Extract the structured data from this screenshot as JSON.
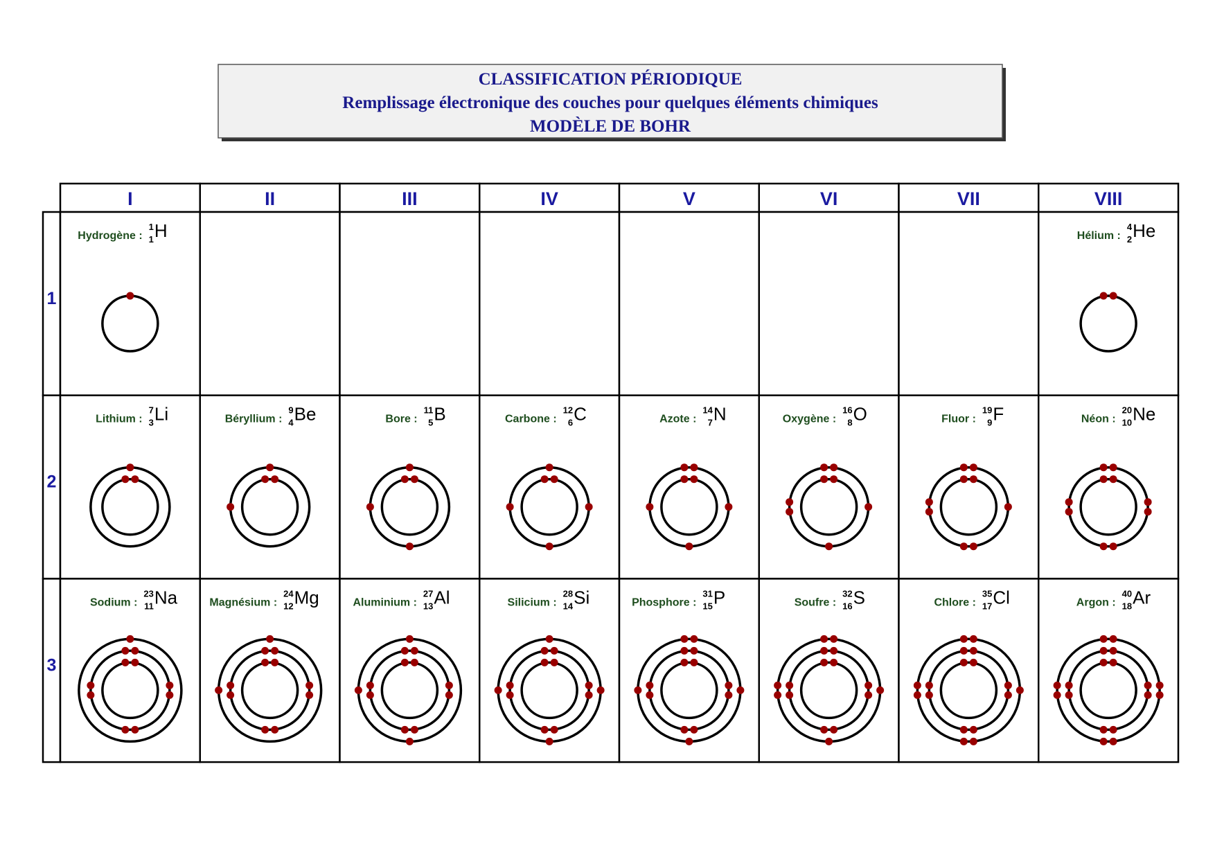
{
  "header": {
    "lines": [
      "CLASSIFICATION PÉRIODIQUE",
      "Remplissage électronique des couches pour quelques éléments chimiques",
      "MODÈLE DE BOHR"
    ]
  },
  "table": {
    "columns": [
      "I",
      "II",
      "III",
      "IV",
      "V",
      "VI",
      "VII",
      "VIII"
    ],
    "rows": [
      {
        "label": "1",
        "cells": [
          {
            "name": "Hydrogène :",
            "mass": 1,
            "z": 1,
            "symbol": "H",
            "shells": [
              1
            ]
          },
          null,
          null,
          null,
          null,
          null,
          null,
          {
            "name": "Hélium :",
            "mass": 4,
            "z": 2,
            "symbol": "He",
            "shells": [
              2
            ]
          }
        ]
      },
      {
        "label": "2",
        "cells": [
          {
            "name": "Lithium :",
            "mass": 7,
            "z": 3,
            "symbol": "Li",
            "shells": [
              2,
              1
            ]
          },
          {
            "name": "Béryllium :",
            "mass": 9,
            "z": 4,
            "symbol": "Be",
            "shells": [
              2,
              2
            ]
          },
          {
            "name": "Bore :",
            "mass": 11,
            "z": 5,
            "symbol": "B",
            "shells": [
              2,
              3
            ]
          },
          {
            "name": "Carbone :",
            "mass": 12,
            "z": 6,
            "symbol": "C",
            "shells": [
              2,
              4
            ]
          },
          {
            "name": "Azote :",
            "mass": 14,
            "z": 7,
            "symbol": "N",
            "shells": [
              2,
              5
            ]
          },
          {
            "name": "Oxygène :",
            "mass": 16,
            "z": 8,
            "symbol": "O",
            "shells": [
              2,
              6
            ]
          },
          {
            "name": "Fluor :",
            "mass": 19,
            "z": 9,
            "symbol": "F",
            "shells": [
              2,
              7
            ]
          },
          {
            "name": "Néon :",
            "mass": 20,
            "z": 10,
            "symbol": "Ne",
            "shells": [
              2,
              8
            ]
          }
        ]
      },
      {
        "label": "3",
        "cells": [
          {
            "name": "Sodium :",
            "mass": 23,
            "z": 11,
            "symbol": "Na",
            "shells": [
              2,
              8,
              1
            ]
          },
          {
            "name": "Magnésium :",
            "mass": 24,
            "z": 12,
            "symbol": "Mg",
            "shells": [
              2,
              8,
              2
            ]
          },
          {
            "name": "Aluminium :",
            "mass": 27,
            "z": 13,
            "symbol": "Al",
            "shells": [
              2,
              8,
              3
            ]
          },
          {
            "name": "Silicium :",
            "mass": 28,
            "z": 14,
            "symbol": "Si",
            "shells": [
              2,
              8,
              4
            ]
          },
          {
            "name": "Phosphore :",
            "mass": 31,
            "z": 15,
            "symbol": "P",
            "shells": [
              2,
              8,
              5
            ]
          },
          {
            "name": "Soufre :",
            "mass": 32,
            "z": 16,
            "symbol": "S",
            "shells": [
              2,
              8,
              6
            ]
          },
          {
            "name": "Chlore :",
            "mass": 35,
            "z": 17,
            "symbol": "Cl",
            "shells": [
              2,
              8,
              7
            ]
          },
          {
            "name": "Argon :",
            "mass": 40,
            "z": 18,
            "symbol": "Ar",
            "shells": [
              2,
              8,
              8
            ]
          }
        ]
      }
    ]
  }
}
